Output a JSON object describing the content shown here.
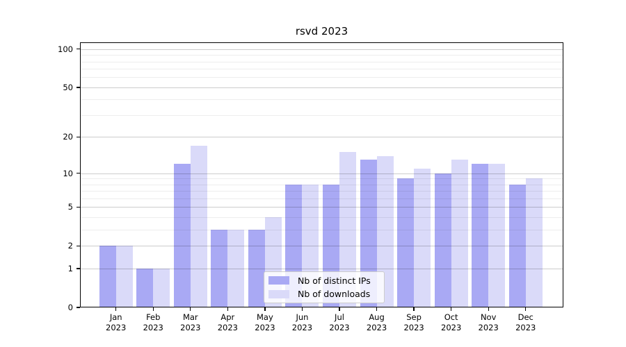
{
  "chart_data": {
    "type": "bar",
    "title": "rsvd 2023",
    "months": [
      "Jan",
      "Feb",
      "Mar",
      "Apr",
      "May",
      "Jun",
      "Jul",
      "Aug",
      "Sep",
      "Oct",
      "Nov",
      "Dec"
    ],
    "year": "2023",
    "series": [
      {
        "name": "Nb of distinct IPs",
        "slug": "distinct-ips",
        "color": "#a9a9f4",
        "values": [
          2,
          1,
          12,
          3,
          3,
          8,
          8,
          13,
          9,
          10,
          12,
          8
        ]
      },
      {
        "name": "Nb of downloads",
        "slug": "downloads",
        "color": "#dadaf9",
        "values": [
          2,
          1,
          17,
          3,
          4,
          8,
          15,
          14,
          11,
          13,
          12,
          9
        ]
      }
    ],
    "yscale": "log1p",
    "ylim": [
      0,
      113
    ],
    "y_major_ticks": [
      0,
      1,
      2,
      5,
      10,
      20,
      50,
      100
    ],
    "y_minor_gridlines": [
      3,
      4,
      6,
      7,
      8,
      9,
      30,
      40,
      60,
      70,
      80,
      90
    ],
    "xlabel": "",
    "ylabel": "",
    "grid": true,
    "legend_position": "lower center",
    "background_color": "#ffffff",
    "axis_color": "#000000",
    "major_grid_color": "#c9c9c9",
    "minor_grid_color": "#ececec"
  }
}
